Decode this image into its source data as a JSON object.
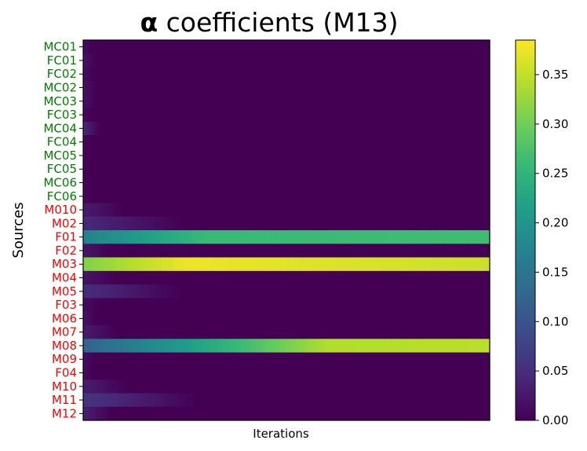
{
  "chart_data": {
    "type": "heatmap",
    "title": {
      "symbol": "α",
      "text": "coefficients",
      "suffix": "(M13)"
    },
    "xlabel": "Iterations",
    "ylabel": "Sources",
    "x_ticks_visible": false,
    "rows": [
      "MC01",
      "FC01",
      "FC02",
      "MC02",
      "MC03",
      "FC03",
      "MC04",
      "FC04",
      "MC05",
      "FC05",
      "MC06",
      "FC06",
      "M010",
      "M02",
      "F01",
      "F02",
      "M03",
      "M04",
      "M05",
      "F03",
      "M06",
      "M07",
      "M08",
      "M09",
      "F04",
      "M10",
      "M11",
      "M12"
    ],
    "row_label_colors": [
      "#008000",
      "#008000",
      "#008000",
      "#008000",
      "#008000",
      "#008000",
      "#008000",
      "#008000",
      "#008000",
      "#008000",
      "#008000",
      "#008000",
      "#ff0000",
      "#ff0000",
      "#ff0000",
      "#ff0000",
      "#ff0000",
      "#ff0000",
      "#ff0000",
      "#ff0000",
      "#ff0000",
      "#ff0000",
      "#ff0000",
      "#ff0000",
      "#ff0000",
      "#ff0000",
      "#ff0000",
      "#ff0000"
    ],
    "iteration_range": [
      0,
      100
    ],
    "rows_profile": [
      {
        "start": 0.012,
        "peak": 0.012,
        "peak_at": 0,
        "end": 0.0,
        "end_at": 2
      },
      {
        "start": 0.02,
        "peak": 0.02,
        "peak_at": 0,
        "end": 0.0,
        "end_at": 3
      },
      {
        "start": 0.015,
        "peak": 0.015,
        "peak_at": 0,
        "end": 0.0,
        "end_at": 2
      },
      {
        "start": 0.02,
        "peak": 0.02,
        "peak_at": 0,
        "end": 0.0,
        "end_at": 3
      },
      {
        "start": 0.018,
        "peak": 0.018,
        "peak_at": 0,
        "end": 0.0,
        "end_at": 3
      },
      {
        "start": 0.008,
        "peak": 0.008,
        "peak_at": 0,
        "end": 0.0,
        "end_at": 2
      },
      {
        "start": 0.045,
        "peak": 0.045,
        "peak_at": 0,
        "end": 0.0,
        "end_at": 4
      },
      {
        "start": 0.005,
        "peak": 0.005,
        "peak_at": 0,
        "end": 0.0,
        "end_at": 2
      },
      {
        "start": 0.005,
        "peak": 0.005,
        "peak_at": 0,
        "end": 0.0,
        "end_at": 2
      },
      {
        "start": 0.005,
        "peak": 0.005,
        "peak_at": 0,
        "end": 0.0,
        "end_at": 2
      },
      {
        "start": 0.005,
        "peak": 0.005,
        "peak_at": 0,
        "end": 0.0,
        "end_at": 2
      },
      {
        "start": 0.006,
        "peak": 0.006,
        "peak_at": 0,
        "end": 0.0,
        "end_at": 2
      },
      {
        "start": 0.03,
        "peak": 0.03,
        "peak_at": 0,
        "end": 0.0,
        "end_at": 10
      },
      {
        "start": 0.045,
        "peak": 0.045,
        "peak_at": 0,
        "end": 0.0,
        "end_at": 25
      },
      {
        "start": 0.17,
        "peak": 0.26,
        "peak_at": 30,
        "end": 0.265,
        "end_at": 100
      },
      {
        "start": 0.025,
        "peak": 0.025,
        "peak_at": 0,
        "end": 0.0,
        "end_at": 6
      },
      {
        "start": 0.31,
        "peak": 0.375,
        "peak_at": 25,
        "end": 0.355,
        "end_at": 100
      },
      {
        "start": 0.02,
        "peak": 0.02,
        "peak_at": 0,
        "end": 0.0,
        "end_at": 8
      },
      {
        "start": 0.05,
        "peak": 0.05,
        "peak_at": 0,
        "end": 0.0,
        "end_at": 24
      },
      {
        "start": 0.012,
        "peak": 0.012,
        "peak_at": 0,
        "end": 0.0,
        "end_at": 4
      },
      {
        "start": 0.02,
        "peak": 0.02,
        "peak_at": 0,
        "end": 0.0,
        "end_at": 3
      },
      {
        "start": 0.03,
        "peak": 0.03,
        "peak_at": 0,
        "end": 0.0,
        "end_at": 8
      },
      {
        "start": 0.12,
        "peak": 0.34,
        "peak_at": 60,
        "end": 0.345,
        "end_at": 100
      },
      {
        "start": 0.012,
        "peak": 0.012,
        "peak_at": 0,
        "end": 0.0,
        "end_at": 3
      },
      {
        "start": 0.015,
        "peak": 0.015,
        "peak_at": 0,
        "end": 0.0,
        "end_at": 2
      },
      {
        "start": 0.03,
        "peak": 0.03,
        "peak_at": 0,
        "end": 0.0,
        "end_at": 11
      },
      {
        "start": 0.06,
        "peak": 0.06,
        "peak_at": 0,
        "end": 0.0,
        "end_at": 28
      },
      {
        "start": 0.035,
        "peak": 0.035,
        "peak_at": 0,
        "end": 0.0,
        "end_at": 7
      }
    ],
    "colorbar": {
      "colormap": "viridis",
      "range": [
        0.0,
        0.385
      ],
      "ticks": [
        "0.00",
        "0.05",
        "0.10",
        "0.15",
        "0.20",
        "0.25",
        "0.30",
        "0.35"
      ]
    }
  }
}
